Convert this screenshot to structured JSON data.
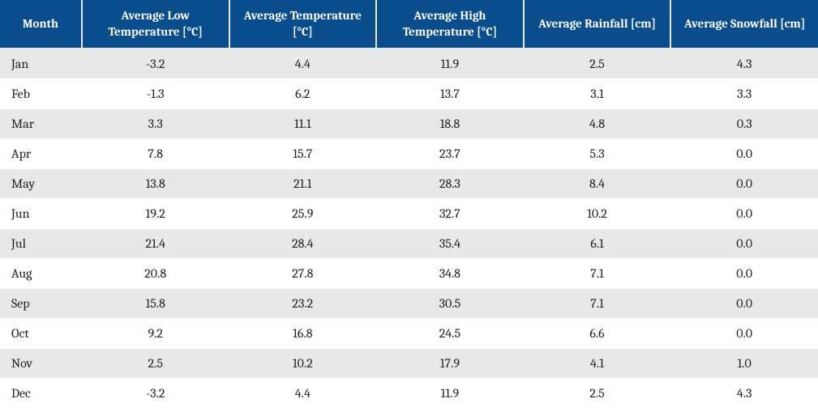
{
  "table": {
    "columns": [
      {
        "key": "month",
        "label": "Month"
      },
      {
        "key": "low",
        "label": "Average Low Temperature [°C]"
      },
      {
        "key": "avg",
        "label": "Average Temperature [°C]"
      },
      {
        "key": "high",
        "label": "Average High Temperature [°C]"
      },
      {
        "key": "rain",
        "label": "Average Rainfall [cm]"
      },
      {
        "key": "snow",
        "label": "Average Snowfall [cm]"
      }
    ],
    "rows": [
      {
        "month": "Jan",
        "low": "-3.2",
        "avg": "4.4",
        "high": "11.9",
        "rain": "2.5",
        "snow": "4.3"
      },
      {
        "month": "Feb",
        "low": "-1.3",
        "avg": "6.2",
        "high": "13.7",
        "rain": "3.1",
        "snow": "3.3"
      },
      {
        "month": "Mar",
        "low": "3.3",
        "avg": "11.1",
        "high": "18.8",
        "rain": "4.8",
        "snow": "0.3"
      },
      {
        "month": "Apr",
        "low": "7.8",
        "avg": "15.7",
        "high": "23.7",
        "rain": "5.3",
        "snow": "0.0"
      },
      {
        "month": "May",
        "low": "13.8",
        "avg": "21.1",
        "high": "28.3",
        "rain": "8.4",
        "snow": "0.0"
      },
      {
        "month": "Jun",
        "low": "19.2",
        "avg": "25.9",
        "high": "32.7",
        "rain": "10.2",
        "snow": "0.0"
      },
      {
        "month": "Jul",
        "low": "21.4",
        "avg": "28.4",
        "high": "35.4",
        "rain": "6.1",
        "snow": "0.0"
      },
      {
        "month": "Aug",
        "low": "20.8",
        "avg": "27.8",
        "high": "34.8",
        "rain": "7.1",
        "snow": "0.0"
      },
      {
        "month": "Sep",
        "low": "15.8",
        "avg": "23.2",
        "high": "30.5",
        "rain": "7.1",
        "snow": "0.0"
      },
      {
        "month": "Oct",
        "low": "9.2",
        "avg": "16.8",
        "high": "24.5",
        "rain": "6.6",
        "snow": "0.0"
      },
      {
        "month": "Nov",
        "low": "2.5",
        "avg": "10.2",
        "high": "17.9",
        "rain": "4.1",
        "snow": "1.0"
      },
      {
        "month": "Dec",
        "low": "-3.2",
        "avg": "4.4",
        "high": "11.9",
        "rain": "2.5",
        "snow": "4.3"
      }
    ],
    "colors": {
      "header_bg": "#0a4d8c",
      "header_text": "#ffffff",
      "row_odd_bg": "#e8e8e8",
      "row_even_bg": "#ffffff",
      "text_color": "#222222"
    },
    "column_widths": {
      "month": 100,
      "data": 180
    },
    "font": {
      "header_size": 15,
      "cell_size": 16,
      "family": "Cambria, Georgia, serif"
    }
  }
}
